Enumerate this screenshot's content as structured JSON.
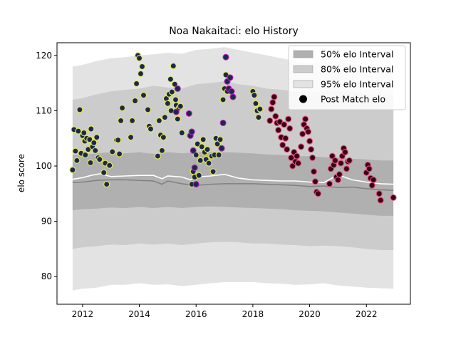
{
  "chart_data": {
    "type": "scatter",
    "title": "Noa Nakaitaci: elo History",
    "xlabel": "",
    "ylabel": "elo score",
    "xlim": [
      2011.1,
      2023.55
    ],
    "ylim": [
      75.0,
      122.3
    ],
    "x_ticks": [
      2012,
      2014,
      2016,
      2018,
      2020,
      2022
    ],
    "x_tick_labels": [
      "2012",
      "2014",
      "2016",
      "2018",
      "2020",
      "2022"
    ],
    "y_ticks": [
      80,
      90,
      100,
      110,
      120
    ],
    "y_tick_labels": [
      "80",
      "90",
      "100",
      "110",
      "120"
    ],
    "grid": false,
    "legend_position": "top-right",
    "legend": [
      {
        "label": "50% elo Interval",
        "kind": "band",
        "color": "#b0b0b0"
      },
      {
        "label": "80% elo Interval",
        "kind": "band",
        "color": "#cccccc"
      },
      {
        "label": "95% elo Interval",
        "kind": "band",
        "color": "#e3e3e3"
      },
      {
        "label": "Post Match elo",
        "kind": "marker",
        "color": "#000000"
      }
    ],
    "bands": {
      "x": [
        2011.65,
        2012.0,
        2012.5,
        2013.0,
        2013.5,
        2014.0,
        2014.5,
        2015.0,
        2015.5,
        2016.0,
        2016.5,
        2017.0,
        2017.5,
        2018.0,
        2018.5,
        2019.0,
        2019.5,
        2020.0,
        2020.5,
        2021.0,
        2021.5,
        2022.0,
        2022.5,
        2022.95
      ],
      "p95_high": [
        118.0,
        118.3,
        119.0,
        119.5,
        119.7,
        120.0,
        120.2,
        120.5,
        120.3,
        121.0,
        121.2,
        121.5,
        121.0,
        120.5,
        120.0,
        119.5,
        119.0,
        118.5,
        118.7,
        119.0,
        118.5,
        118.0,
        117.5,
        117.2
      ],
      "p95_low": [
        77.5,
        77.8,
        78.0,
        78.5,
        78.5,
        78.8,
        78.5,
        78.6,
        78.3,
        78.5,
        78.8,
        79.0,
        79.0,
        79.0,
        78.8,
        78.7,
        78.5,
        78.6,
        78.8,
        78.4,
        78.2,
        78.0,
        77.9,
        77.8
      ],
      "p80_high": [
        112.0,
        112.3,
        113.0,
        113.5,
        113.8,
        114.0,
        114.5,
        114.2,
        114.0,
        114.8,
        115.0,
        115.3,
        114.8,
        114.5,
        114.0,
        113.8,
        113.5,
        113.3,
        113.5,
        113.6,
        113.4,
        113.0,
        112.8,
        112.8
      ],
      "p80_low": [
        85.0,
        85.3,
        85.5,
        85.8,
        85.7,
        86.0,
        85.8,
        86.0,
        85.7,
        86.0,
        86.2,
        86.3,
        86.2,
        86.0,
        86.0,
        85.8,
        85.7,
        85.5,
        85.6,
        85.5,
        85.3,
        85.0,
        84.8,
        84.8
      ],
      "p50_high": [
        102.0,
        102.0,
        102.3,
        102.5,
        102.3,
        102.5,
        102.2,
        102.5,
        102.3,
        102.5,
        102.6,
        102.5,
        102.4,
        102.3,
        102.1,
        102.0,
        101.8,
        101.8,
        101.6,
        101.5,
        101.3,
        101.2,
        101.0,
        101.0
      ],
      "p50_low": [
        92.0,
        92.2,
        92.3,
        92.5,
        92.4,
        92.6,
        92.4,
        92.6,
        92.4,
        92.6,
        92.7,
        92.6,
        92.5,
        92.4,
        92.3,
        92.2,
        92.0,
        91.9,
        91.8,
        91.6,
        91.4,
        91.2,
        91.0,
        91.0
      ]
    },
    "median_line": {
      "x": [
        2011.65,
        2012.0,
        2012.5,
        2013.0,
        2013.5,
        2014.0,
        2014.5,
        2014.8,
        2015.0,
        2015.5,
        2016.0,
        2016.5,
        2017.0,
        2017.5,
        2018.0,
        2018.5,
        2019.0,
        2019.5,
        2020.0,
        2020.5,
        2021.0,
        2021.5,
        2022.0,
        2022.5,
        2022.95
      ],
      "y": [
        97.0,
        97.1,
        97.4,
        97.5,
        97.5,
        97.4,
        97.3,
        96.7,
        97.3,
        96.8,
        96.5,
        96.7,
        96.8,
        96.8,
        96.8,
        96.7,
        96.6,
        96.5,
        96.3,
        96.4,
        96.1,
        96.2,
        95.9,
        95.7,
        95.6
      ]
    },
    "mean_line": {
      "x": [
        2011.65,
        2012.0,
        2012.3,
        2012.6,
        2013.0,
        2013.5,
        2014.0,
        2014.5,
        2014.8,
        2015.0,
        2015.5,
        2015.8,
        2016.0,
        2016.5,
        2017.0,
        2017.5,
        2018.0,
        2018.5,
        2019.0,
        2019.5,
        2020.0,
        2020.5,
        2021.0,
        2021.5,
        2022.0,
        2022.5,
        2022.95
      ],
      "y": [
        97.6,
        97.9,
        98.3,
        98.6,
        98.1,
        98.2,
        98.3,
        98.3,
        97.7,
        98.2,
        98.0,
        97.5,
        98.0,
        98.2,
        98.5,
        97.8,
        97.5,
        97.4,
        97.3,
        97.3,
        97.1,
        97.0,
        98.4,
        97.5,
        97.1,
        96.8,
        96.7
      ]
    },
    "series": [
      {
        "name": "Post Match elo",
        "fill": "#1a2a4a",
        "edge": "#e8e85a",
        "points": [
          [
            2011.65,
            99.3
          ],
          [
            2011.7,
            106.6
          ],
          [
            2011.75,
            102.7
          ],
          [
            2011.8,
            101.0
          ],
          [
            2011.85,
            106.3
          ],
          [
            2011.9,
            110.2
          ],
          [
            2011.95,
            102.3
          ],
          [
            2012.0,
            105.5
          ],
          [
            2012.05,
            106.0
          ],
          [
            2012.08,
            104.5
          ],
          [
            2012.1,
            102.0
          ],
          [
            2012.15,
            105.0
          ],
          [
            2012.2,
            103.0
          ],
          [
            2012.25,
            104.8
          ],
          [
            2012.28,
            100.6
          ],
          [
            2012.3,
            106.7
          ],
          [
            2012.35,
            103.5
          ],
          [
            2012.4,
            104.2
          ],
          [
            2012.45,
            102.8
          ],
          [
            2012.5,
            105.2
          ],
          [
            2012.55,
            101.5
          ],
          [
            2012.6,
            101.2
          ],
          [
            2012.75,
            98.8
          ],
          [
            2012.8,
            100.5
          ],
          [
            2012.85,
            96.7
          ],
          [
            2012.95,
            100.1
          ],
          [
            2013.05,
            102.6
          ],
          [
            2013.2,
            104.7
          ],
          [
            2013.25,
            104.7
          ],
          [
            2013.3,
            102.2
          ],
          [
            2013.35,
            108.2
          ],
          [
            2013.4,
            110.5
          ],
          [
            2013.7,
            105.2
          ],
          [
            2013.75,
            108.2
          ],
          [
            2013.85,
            111.8
          ],
          [
            2013.9,
            114.9
          ],
          [
            2013.95,
            120.0
          ],
          [
            2014.0,
            119.5
          ],
          [
            2014.05,
            116.7
          ],
          [
            2014.1,
            118.0
          ],
          [
            2014.15,
            112.8
          ],
          [
            2014.3,
            110.2
          ],
          [
            2014.35,
            107.2
          ],
          [
            2014.4,
            106.7
          ],
          [
            2014.65,
            101.8
          ],
          [
            2014.7,
            108.2
          ],
          [
            2014.75,
            105.6
          ],
          [
            2014.8,
            102.8
          ],
          [
            2014.85,
            105.2
          ],
          [
            2014.9,
            108.8
          ],
          [
            2014.95,
            112.2
          ],
          [
            2015.0,
            111.3
          ],
          [
            2015.05,
            113.0
          ],
          [
            2015.1,
            115.7
          ],
          [
            2015.12,
            110.0
          ],
          [
            2015.15,
            113.4
          ],
          [
            2015.2,
            118.1
          ],
          [
            2015.25,
            114.8
          ],
          [
            2015.28,
            112.0
          ],
          [
            2015.3,
            111.0
          ],
          [
            2015.35,
            108.5
          ],
          [
            2015.4,
            110.5
          ],
          [
            2015.45,
            110.8
          ],
          [
            2015.5,
            106.0
          ],
          [
            2015.85,
            96.7
          ],
          [
            2015.9,
            99.0
          ],
          [
            2015.95,
            98.0
          ],
          [
            2016.0,
            102.0
          ],
          [
            2016.05,
            104.0
          ],
          [
            2016.1,
            98.3
          ],
          [
            2016.15,
            101.0
          ],
          [
            2016.2,
            103.5
          ],
          [
            2016.25,
            104.8
          ],
          [
            2016.3,
            102.5
          ],
          [
            2016.35,
            101.2
          ],
          [
            2016.4,
            103.0
          ],
          [
            2016.45,
            100.5
          ],
          [
            2016.55,
            101.8
          ],
          [
            2016.6,
            99.0
          ],
          [
            2016.65,
            102.0
          ],
          [
            2016.7,
            105.0
          ],
          [
            2016.75,
            104.0
          ],
          [
            2016.8,
            102.0
          ],
          [
            2016.85,
            104.8
          ],
          [
            2016.95,
            112.0
          ],
          [
            2017.0,
            114.0
          ],
          [
            2017.05,
            116.5
          ],
          [
            2017.1,
            113.5
          ]
        ]
      },
      {
        "name": "",
        "fill": "#1a2a4a",
        "edge": "#c020c0",
        "points": [
          [
            2015.3,
            109.8
          ],
          [
            2015.35,
            114.0
          ],
          [
            2015.75,
            109.5
          ],
          [
            2015.8,
            105.5
          ],
          [
            2015.85,
            106.2
          ],
          [
            2015.9,
            102.8
          ],
          [
            2015.95,
            99.7
          ],
          [
            2016.0,
            96.7
          ],
          [
            2016.9,
            103.2
          ],
          [
            2016.95,
            107.8
          ],
          [
            2017.05,
            119.7
          ],
          [
            2017.1,
            115.3
          ],
          [
            2017.15,
            114.0
          ],
          [
            2017.2,
            116.0
          ],
          [
            2017.25,
            113.5
          ],
          [
            2017.3,
            112.5
          ]
        ]
      },
      {
        "name": "",
        "fill": "#1a2a4a",
        "edge": "#e8e85a",
        "points": [
          [
            2018.0,
            113.5
          ],
          [
            2018.05,
            112.8
          ],
          [
            2018.1,
            111.3
          ],
          [
            2018.15,
            110.0
          ],
          [
            2018.2,
            108.8
          ],
          [
            2018.25,
            110.3
          ]
        ]
      },
      {
        "name": "",
        "fill": "#3a0010",
        "edge": "#e05080",
        "points": [
          [
            2018.6,
            108.2
          ],
          [
            2018.65,
            110.3
          ],
          [
            2018.7,
            111.5
          ],
          [
            2018.75,
            112.5
          ],
          [
            2018.8,
            109.0
          ],
          [
            2018.85,
            107.8
          ],
          [
            2018.9,
            106.5
          ],
          [
            2018.95,
            108.0
          ],
          [
            2019.0,
            105.2
          ],
          [
            2019.05,
            103.8
          ],
          [
            2019.1,
            107.5
          ],
          [
            2019.15,
            105.0
          ],
          [
            2019.2,
            103.0
          ],
          [
            2019.25,
            108.5
          ],
          [
            2019.3,
            106.8
          ],
          [
            2019.35,
            101.5
          ],
          [
            2019.4,
            100.0
          ],
          [
            2019.45,
            102.5
          ],
          [
            2019.5,
            100.8
          ],
          [
            2019.55,
            101.8
          ],
          [
            2019.6,
            100.5
          ],
          [
            2019.7,
            103.5
          ],
          [
            2019.75,
            105.8
          ],
          [
            2019.8,
            107.5
          ],
          [
            2019.85,
            108.5
          ],
          [
            2019.9,
            106.8
          ],
          [
            2019.95,
            106.2
          ],
          [
            2020.0,
            104.5
          ],
          [
            2020.05,
            103.0
          ],
          [
            2020.1,
            101.5
          ],
          [
            2020.15,
            99.0
          ],
          [
            2020.2,
            97.2
          ],
          [
            2020.25,
            95.3
          ],
          [
            2020.3,
            95.0
          ],
          [
            2020.7,
            96.8
          ],
          [
            2020.75,
            99.5
          ],
          [
            2020.8,
            101.8
          ],
          [
            2020.85,
            100.2
          ],
          [
            2020.9,
            101.0
          ],
          [
            2020.95,
            98.0
          ],
          [
            2021.0,
            97.5
          ],
          [
            2021.05,
            98.5
          ],
          [
            2021.1,
            100.5
          ],
          [
            2021.15,
            101.8
          ],
          [
            2021.2,
            103.2
          ],
          [
            2021.25,
            102.5
          ],
          [
            2021.3,
            99.5
          ],
          [
            2021.35,
            100.8
          ],
          [
            2021.4,
            101.0
          ],
          [
            2022.0,
            98.8
          ],
          [
            2022.05,
            100.2
          ],
          [
            2022.1,
            99.5
          ],
          [
            2022.15,
            97.8
          ],
          [
            2022.2,
            96.5
          ],
          [
            2022.25,
            97.5
          ],
          [
            2022.45,
            95.0
          ],
          [
            2022.5,
            93.8
          ],
          [
            2022.95,
            94.3
          ]
        ]
      }
    ]
  }
}
